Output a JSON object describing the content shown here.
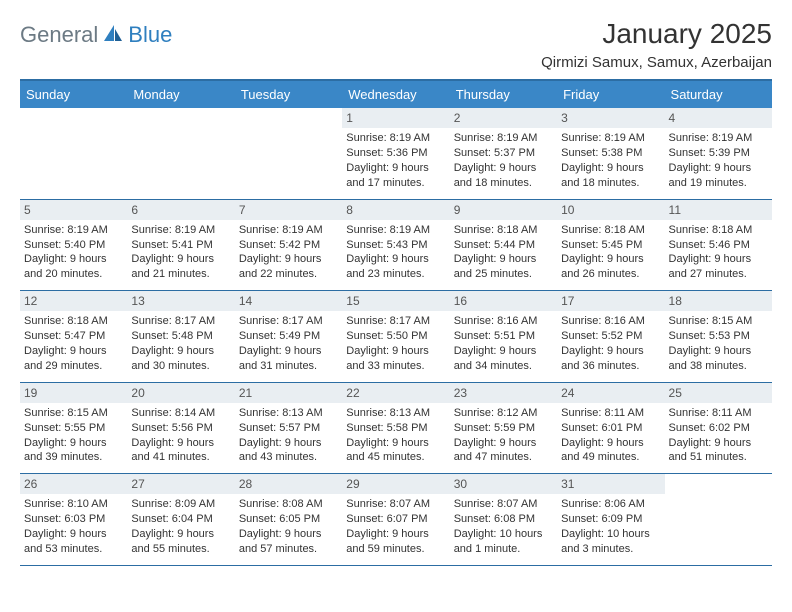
{
  "brand": {
    "name_a": "General",
    "name_b": "Blue"
  },
  "title": "January 2025",
  "location": "Qirmizi Samux, Samux, Azerbaijan",
  "colors": {
    "header_bg": "#3a87c7",
    "header_border": "#2c6da3",
    "daynum_bg": "#e9eef2",
    "text": "#333333",
    "logo_gray": "#6c7a84",
    "logo_blue": "#2f7fbf"
  },
  "day_headers": [
    "Sunday",
    "Monday",
    "Tuesday",
    "Wednesday",
    "Thursday",
    "Friday",
    "Saturday"
  ],
  "weeks": [
    [
      null,
      null,
      null,
      {
        "n": "1",
        "sr": "8:19 AM",
        "ss": "5:36 PM",
        "dl": "9 hours and 17 minutes."
      },
      {
        "n": "2",
        "sr": "8:19 AM",
        "ss": "5:37 PM",
        "dl": "9 hours and 18 minutes."
      },
      {
        "n": "3",
        "sr": "8:19 AM",
        "ss": "5:38 PM",
        "dl": "9 hours and 18 minutes."
      },
      {
        "n": "4",
        "sr": "8:19 AM",
        "ss": "5:39 PM",
        "dl": "9 hours and 19 minutes."
      }
    ],
    [
      {
        "n": "5",
        "sr": "8:19 AM",
        "ss": "5:40 PM",
        "dl": "9 hours and 20 minutes."
      },
      {
        "n": "6",
        "sr": "8:19 AM",
        "ss": "5:41 PM",
        "dl": "9 hours and 21 minutes."
      },
      {
        "n": "7",
        "sr": "8:19 AM",
        "ss": "5:42 PM",
        "dl": "9 hours and 22 minutes."
      },
      {
        "n": "8",
        "sr": "8:19 AM",
        "ss": "5:43 PM",
        "dl": "9 hours and 23 minutes."
      },
      {
        "n": "9",
        "sr": "8:18 AM",
        "ss": "5:44 PM",
        "dl": "9 hours and 25 minutes."
      },
      {
        "n": "10",
        "sr": "8:18 AM",
        "ss": "5:45 PM",
        "dl": "9 hours and 26 minutes."
      },
      {
        "n": "11",
        "sr": "8:18 AM",
        "ss": "5:46 PM",
        "dl": "9 hours and 27 minutes."
      }
    ],
    [
      {
        "n": "12",
        "sr": "8:18 AM",
        "ss": "5:47 PM",
        "dl": "9 hours and 29 minutes."
      },
      {
        "n": "13",
        "sr": "8:17 AM",
        "ss": "5:48 PM",
        "dl": "9 hours and 30 minutes."
      },
      {
        "n": "14",
        "sr": "8:17 AM",
        "ss": "5:49 PM",
        "dl": "9 hours and 31 minutes."
      },
      {
        "n": "15",
        "sr": "8:17 AM",
        "ss": "5:50 PM",
        "dl": "9 hours and 33 minutes."
      },
      {
        "n": "16",
        "sr": "8:16 AM",
        "ss": "5:51 PM",
        "dl": "9 hours and 34 minutes."
      },
      {
        "n": "17",
        "sr": "8:16 AM",
        "ss": "5:52 PM",
        "dl": "9 hours and 36 minutes."
      },
      {
        "n": "18",
        "sr": "8:15 AM",
        "ss": "5:53 PM",
        "dl": "9 hours and 38 minutes."
      }
    ],
    [
      {
        "n": "19",
        "sr": "8:15 AM",
        "ss": "5:55 PM",
        "dl": "9 hours and 39 minutes."
      },
      {
        "n": "20",
        "sr": "8:14 AM",
        "ss": "5:56 PM",
        "dl": "9 hours and 41 minutes."
      },
      {
        "n": "21",
        "sr": "8:13 AM",
        "ss": "5:57 PM",
        "dl": "9 hours and 43 minutes."
      },
      {
        "n": "22",
        "sr": "8:13 AM",
        "ss": "5:58 PM",
        "dl": "9 hours and 45 minutes."
      },
      {
        "n": "23",
        "sr": "8:12 AM",
        "ss": "5:59 PM",
        "dl": "9 hours and 47 minutes."
      },
      {
        "n": "24",
        "sr": "8:11 AM",
        "ss": "6:01 PM",
        "dl": "9 hours and 49 minutes."
      },
      {
        "n": "25",
        "sr": "8:11 AM",
        "ss": "6:02 PM",
        "dl": "9 hours and 51 minutes."
      }
    ],
    [
      {
        "n": "26",
        "sr": "8:10 AM",
        "ss": "6:03 PM",
        "dl": "9 hours and 53 minutes."
      },
      {
        "n": "27",
        "sr": "8:09 AM",
        "ss": "6:04 PM",
        "dl": "9 hours and 55 minutes."
      },
      {
        "n": "28",
        "sr": "8:08 AM",
        "ss": "6:05 PM",
        "dl": "9 hours and 57 minutes."
      },
      {
        "n": "29",
        "sr": "8:07 AM",
        "ss": "6:07 PM",
        "dl": "9 hours and 59 minutes."
      },
      {
        "n": "30",
        "sr": "8:07 AM",
        "ss": "6:08 PM",
        "dl": "10 hours and 1 minute."
      },
      {
        "n": "31",
        "sr": "8:06 AM",
        "ss": "6:09 PM",
        "dl": "10 hours and 3 minutes."
      },
      null
    ]
  ],
  "labels": {
    "sunrise": "Sunrise:",
    "sunset": "Sunset:",
    "daylight": "Daylight:"
  }
}
